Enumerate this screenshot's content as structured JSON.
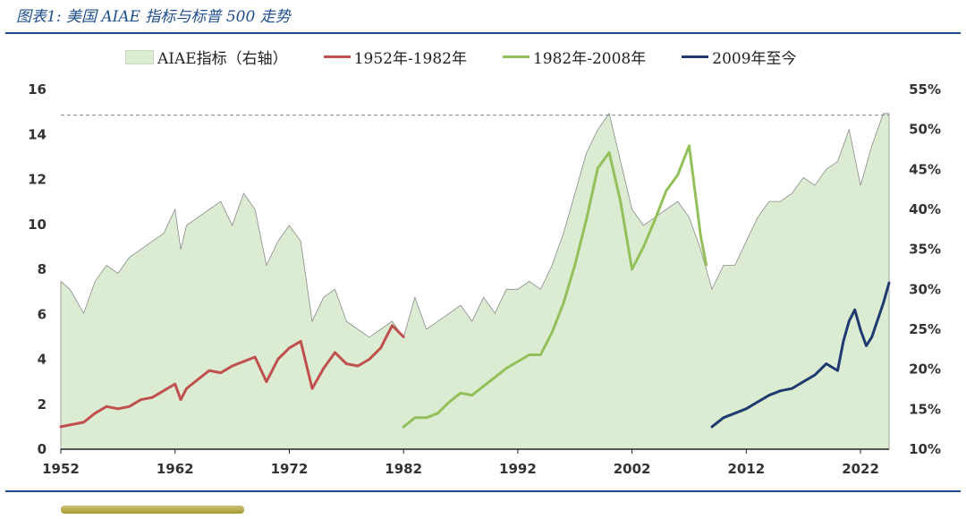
{
  "title": "图表1: 美国 AIAE 指标与标普 500 走势",
  "colors": {
    "aiae_fill": "#dcecd3",
    "aiae_edge": "#8a8a8a",
    "series1": "#c0504d",
    "series2": "#92c05a",
    "series3": "#1f3a6e",
    "rule": "#1f4e8c"
  },
  "legend": {
    "aiae": "AIAE指标（右轴）",
    "s1": "1952年-1982年",
    "s2": "1982年-2008年",
    "s3": "2009年至今"
  },
  "chart_data": {
    "type": "line",
    "title": "",
    "x_range": [
      1952,
      2024.5
    ],
    "x_ticks": [
      "1952",
      "1962",
      "1972",
      "1982",
      "1992",
      "2002",
      "2012",
      "2022"
    ],
    "y_left": {
      "range": [
        0,
        16
      ],
      "ticks": [
        "0",
        "2",
        "4",
        "6",
        "8",
        "10",
        "12",
        "14",
        "16"
      ]
    },
    "y_right": {
      "range": [
        10,
        55
      ],
      "ticks": [
        "10%",
        "15%",
        "20%",
        "25%",
        "30%",
        "35%",
        "40%",
        "45%",
        "50%",
        "55%"
      ]
    },
    "reference_line_right": 51.8,
    "area": {
      "name": "AIAE指标（右轴）",
      "axis": "right",
      "x": [
        1952,
        1952.8,
        1954,
        1955,
        1956,
        1957,
        1958,
        1959,
        1960,
        1961,
        1962,
        1962.5,
        1963,
        1964,
        1965,
        1966,
        1967,
        1968,
        1969,
        1970,
        1971,
        1972,
        1973,
        1974,
        1975,
        1976,
        1977,
        1978,
        1979,
        1980,
        1981,
        1982,
        1983,
        1984,
        1985,
        1986,
        1987,
        1988,
        1989,
        1990,
        1991,
        1992,
        1993,
        1994,
        1995,
        1996,
        1997,
        1998,
        1999,
        2000,
        2001,
        2002,
        2003,
        2004,
        2005,
        2006,
        2007,
        2008,
        2009,
        2010,
        2011,
        2012,
        2013,
        2014,
        2015,
        2016,
        2017,
        2018,
        2019,
        2020,
        2021,
        2022,
        2023,
        2024,
        2024.5
      ],
      "values": [
        31,
        30,
        27,
        31,
        33,
        32,
        34,
        35,
        36,
        37,
        40,
        35,
        38,
        39,
        40,
        41,
        38,
        42,
        40,
        33,
        36,
        38,
        36,
        26,
        29,
        30,
        26,
        25,
        24,
        25,
        26,
        24,
        29,
        25,
        26,
        27,
        28,
        26,
        29,
        27,
        30,
        30,
        31,
        30,
        33,
        37,
        42,
        47,
        50,
        52,
        46,
        40,
        38,
        39,
        40,
        41,
        39,
        35,
        30,
        33,
        33,
        36,
        39,
        41,
        41,
        42,
        44,
        43,
        45,
        46,
        50,
        43,
        48,
        52,
        52
      ]
    },
    "series": [
      {
        "name": "1952年-1982年",
        "axis": "left",
        "x": [
          1952,
          1953,
          1954,
          1955,
          1956,
          1957,
          1958,
          1959,
          1960,
          1961,
          1962,
          1962.5,
          1963,
          1964,
          1965,
          1966,
          1967,
          1968,
          1969,
          1970,
          1971,
          1972,
          1973,
          1974,
          1975,
          1976,
          1977,
          1978,
          1979,
          1980,
          1981,
          1982
        ],
        "values": [
          1.0,
          1.1,
          1.2,
          1.6,
          1.9,
          1.8,
          1.9,
          2.2,
          2.3,
          2.6,
          2.9,
          2.2,
          2.7,
          3.1,
          3.5,
          3.4,
          3.7,
          3.9,
          4.1,
          3.0,
          4.0,
          4.5,
          4.8,
          2.7,
          3.6,
          4.3,
          3.8,
          3.7,
          4.0,
          4.5,
          5.5,
          5.0
        ]
      },
      {
        "name": "1982年-2008年",
        "axis": "left",
        "x": [
          1982,
          1983,
          1984,
          1985,
          1986,
          1987,
          1988,
          1989,
          1990,
          1991,
          1992,
          1993,
          1994,
          1995,
          1996,
          1997,
          1998,
          1999,
          2000,
          2001,
          2002,
          2003,
          2004,
          2005,
          2006,
          2007,
          2008,
          2008.5
        ],
        "values": [
          1.0,
          1.4,
          1.4,
          1.6,
          2.1,
          2.5,
          2.4,
          2.8,
          3.2,
          3.6,
          3.9,
          4.2,
          4.2,
          5.2,
          6.5,
          8.2,
          10.2,
          12.5,
          13.2,
          11.0,
          8.0,
          9.0,
          10.2,
          11.5,
          12.2,
          13.5,
          9.5,
          8.2
        ]
      },
      {
        "name": "2009年至今",
        "axis": "left",
        "x": [
          2009,
          2010,
          2011,
          2012,
          2013,
          2014,
          2015,
          2016,
          2017,
          2018,
          2019,
          2020,
          2020.5,
          2021,
          2021.5,
          2022,
          2022.5,
          2023,
          2024,
          2024.5
        ],
        "values": [
          1.0,
          1.4,
          1.6,
          1.8,
          2.1,
          2.4,
          2.6,
          2.7,
          3.0,
          3.3,
          3.8,
          3.5,
          4.8,
          5.7,
          6.2,
          5.3,
          4.6,
          5.0,
          6.5,
          7.4
        ]
      }
    ]
  }
}
